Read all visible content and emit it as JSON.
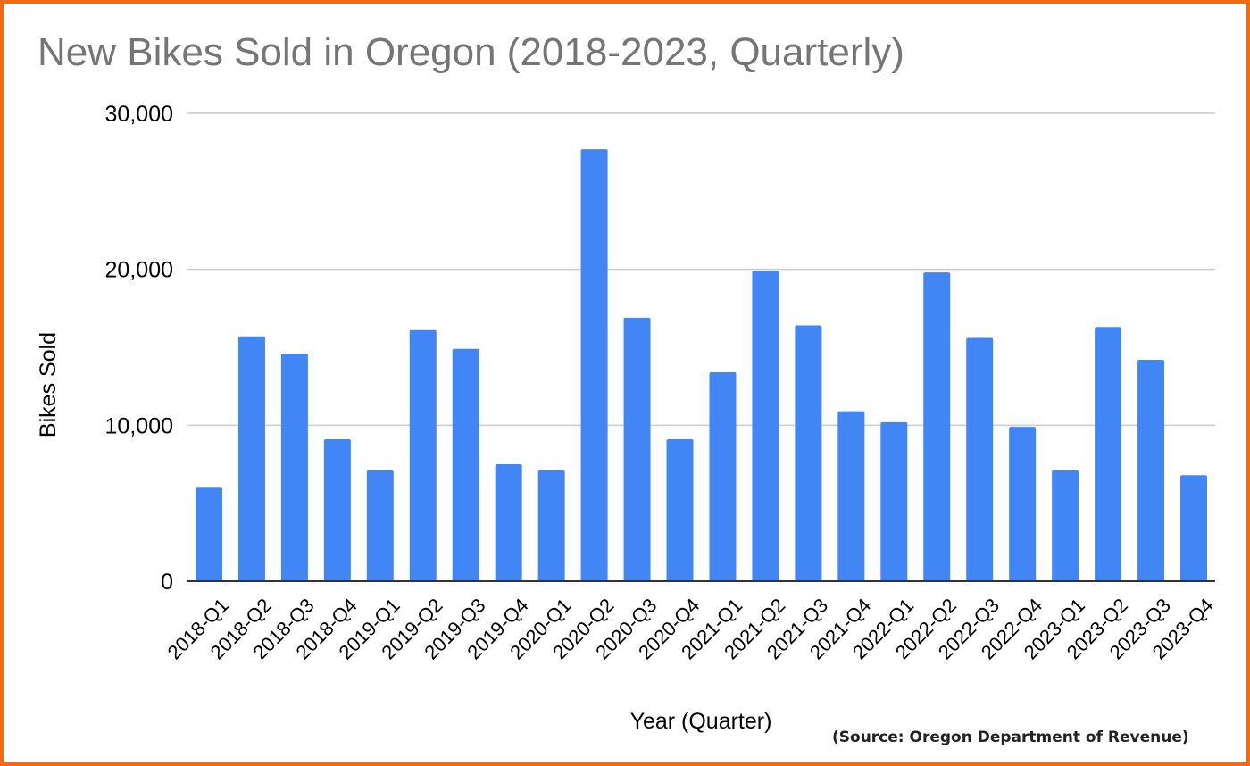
{
  "chart_data": {
    "type": "bar",
    "title": "New Bikes Sold in Oregon (2018-2023, Quarterly)",
    "xlabel": "Year (Quarter)",
    "ylabel": "Bikes Sold",
    "ylim": [
      0,
      30000
    ],
    "yticks": [
      0,
      10000,
      20000,
      30000
    ],
    "ytick_labels": [
      "0",
      "10,000",
      "20,000",
      "30,000"
    ],
    "grid": true,
    "legend": "none",
    "bar_color": "#4285f4",
    "categories": [
      "2018-Q1",
      "2018-Q2",
      "2018-Q3",
      "2018-Q4",
      "2019-Q1",
      "2019-Q2",
      "2019-Q3",
      "2019-Q4",
      "2020-Q1",
      "2020-Q2",
      "2020-Q3",
      "2020-Q4",
      "2021-Q1",
      "2021-Q2",
      "2021-Q3",
      "2021-Q4",
      "2022-Q1",
      "2022-Q2",
      "2022-Q3",
      "2022-Q4",
      "2023-Q1",
      "2023-Q2",
      "2023-Q3",
      "2023-Q4"
    ],
    "values": [
      6000,
      15700,
      14600,
      9100,
      7100,
      16100,
      14900,
      7500,
      7100,
      27700,
      16900,
      9100,
      13400,
      19900,
      16400,
      10900,
      10200,
      19800,
      15600,
      9900,
      7100,
      16300,
      14200,
      6800
    ]
  },
  "source_note": "(Source: Oregon Department of Revenue)",
  "colors": {
    "border": "#f26a12",
    "title": "#757575",
    "grid": "#cccccc",
    "axis": "#333333"
  }
}
